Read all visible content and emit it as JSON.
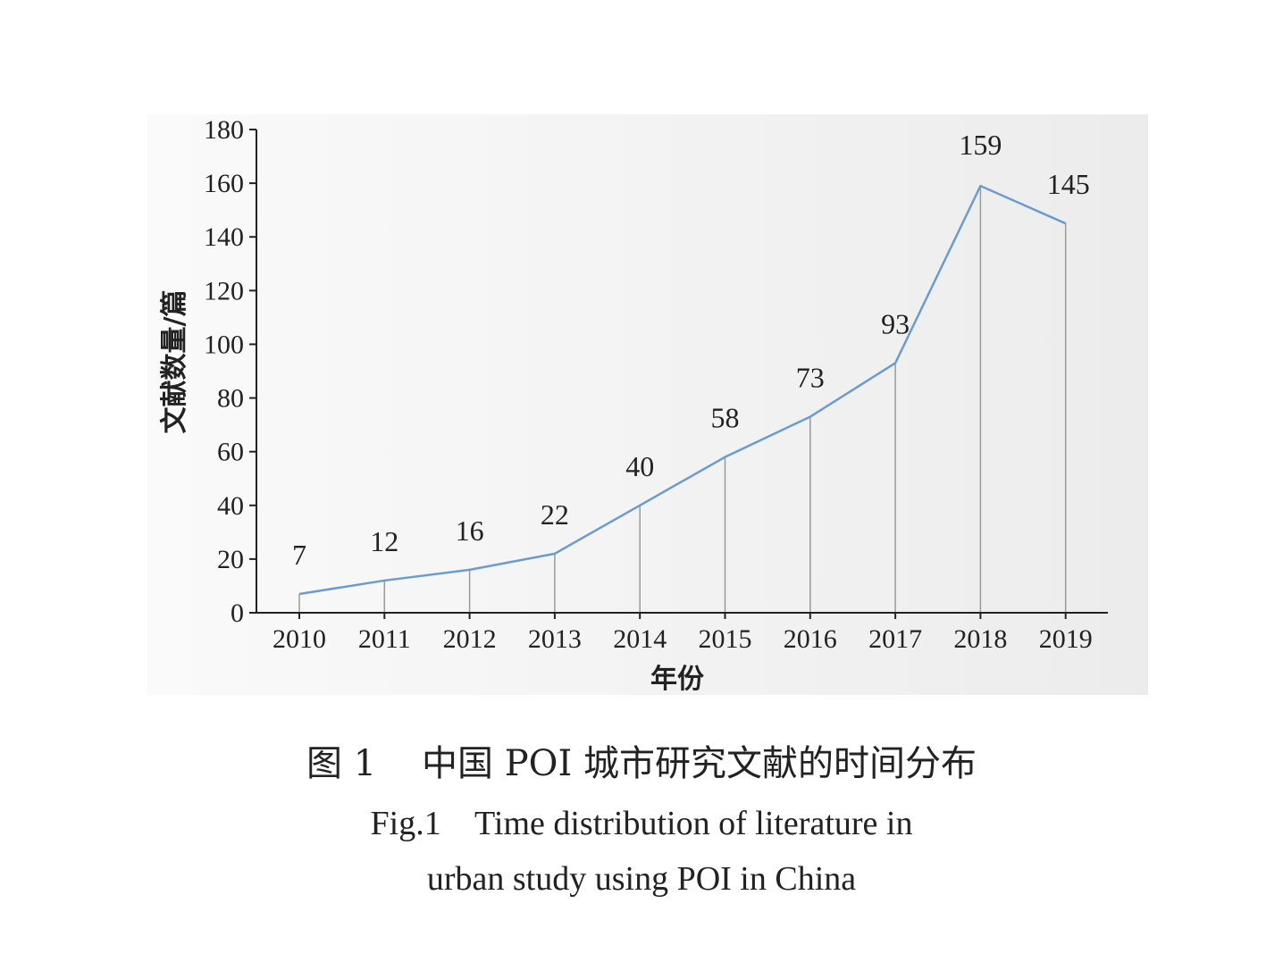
{
  "chart_data": {
    "type": "line",
    "title": "",
    "xlabel": "年份",
    "ylabel": "文献数量/篇",
    "categories": [
      "2010",
      "2011",
      "2012",
      "2013",
      "2014",
      "2015",
      "2016",
      "2017",
      "2018",
      "2019"
    ],
    "values": [
      7,
      12,
      16,
      22,
      40,
      58,
      73,
      93,
      159,
      145
    ],
    "data_labels": [
      "7",
      "12",
      "16",
      "22",
      "40",
      "58",
      "73",
      "93",
      "159",
      "145"
    ],
    "ylim": [
      0,
      180
    ],
    "yticks": [
      "0",
      "20",
      "40",
      "60",
      "80",
      "100",
      "120",
      "140",
      "160",
      "180"
    ],
    "drop_lines": true,
    "grid": false,
    "legend": "none",
    "colors": {
      "line": "#6a9bd1",
      "drop_line": "#9a9a9a",
      "axis": "#222222",
      "plot_background": "#f2f2f2"
    }
  },
  "caption": {
    "cn": "图 1    中国 POI 城市研究文献的时间分布",
    "en_line1": "Fig.1    Time distribution of literature in",
    "en_line2": "urban study using POI in China"
  }
}
